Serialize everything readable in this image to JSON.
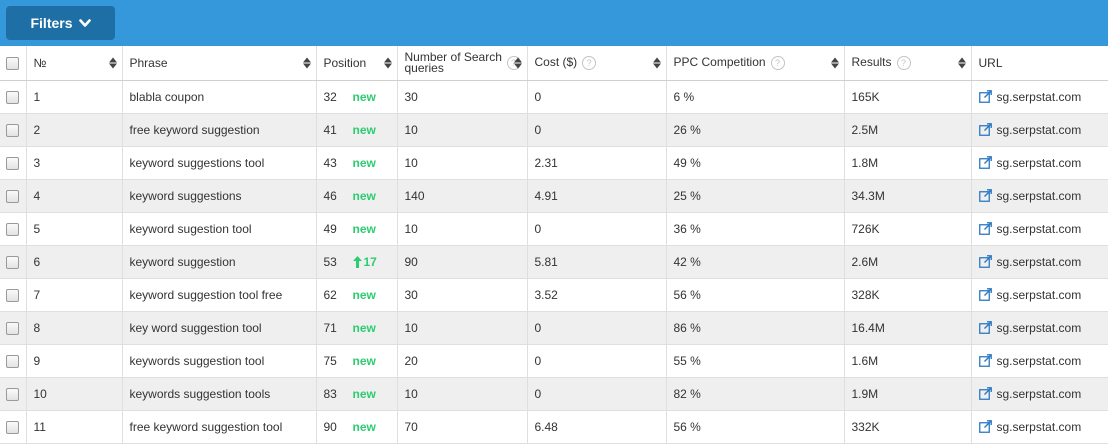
{
  "toolbar": {
    "filters_label": "Filters"
  },
  "headers": {
    "num": "№",
    "phrase": "Phrase",
    "position": "Position",
    "search_queries": "Number of Search queries",
    "cost": "Cost ($)",
    "ppc": "PPC Competition",
    "results": "Results",
    "url": "URL"
  },
  "rows": [
    {
      "n": "1",
      "phrase": "blabla coupon",
      "pos": "32",
      "change": "new",
      "change_type": "new",
      "queries": "30",
      "cost": "0",
      "ppc": "6 %",
      "results": "165K",
      "url": "sg.serpstat.com"
    },
    {
      "n": "2",
      "phrase": "free keyword suggestion",
      "pos": "41",
      "change": "new",
      "change_type": "new",
      "queries": "10",
      "cost": "0",
      "ppc": "26 %",
      "results": "2.5M",
      "url": "sg.serpstat.com"
    },
    {
      "n": "3",
      "phrase": "keyword suggestions tool",
      "pos": "43",
      "change": "new",
      "change_type": "new",
      "queries": "10",
      "cost": "2.31",
      "ppc": "49 %",
      "results": "1.8M",
      "url": "sg.serpstat.com"
    },
    {
      "n": "4",
      "phrase": "keyword suggestions",
      "pos": "46",
      "change": "new",
      "change_type": "new",
      "queries": "140",
      "cost": "4.91",
      "ppc": "25 %",
      "results": "34.3M",
      "url": "sg.serpstat.com"
    },
    {
      "n": "5",
      "phrase": "keyword sugestion tool",
      "pos": "49",
      "change": "new",
      "change_type": "new",
      "queries": "10",
      "cost": "0",
      "ppc": "36 %",
      "results": "726K",
      "url": "sg.serpstat.com"
    },
    {
      "n": "6",
      "phrase": "keyword suggestion",
      "pos": "53",
      "change": "17",
      "change_type": "up",
      "queries": "90",
      "cost": "5.81",
      "ppc": "42 %",
      "results": "2.6M",
      "url": "sg.serpstat.com"
    },
    {
      "n": "7",
      "phrase": "keyword suggestion tool free",
      "pos": "62",
      "change": "new",
      "change_type": "new",
      "queries": "30",
      "cost": "3.52",
      "ppc": "56 %",
      "results": "328K",
      "url": "sg.serpstat.com"
    },
    {
      "n": "8",
      "phrase": "key word suggestion tool",
      "pos": "71",
      "change": "new",
      "change_type": "new",
      "queries": "10",
      "cost": "0",
      "ppc": "86 %",
      "results": "16.4M",
      "url": "sg.serpstat.com"
    },
    {
      "n": "9",
      "phrase": "keywords suggestion tool",
      "pos": "75",
      "change": "new",
      "change_type": "new",
      "queries": "20",
      "cost": "0",
      "ppc": "55 %",
      "results": "1.6M",
      "url": "sg.serpstat.com"
    },
    {
      "n": "10",
      "phrase": "keywords suggestion tools",
      "pos": "83",
      "change": "new",
      "change_type": "new",
      "queries": "10",
      "cost": "0",
      "ppc": "82 %",
      "results": "1.9M",
      "url": "sg.serpstat.com"
    },
    {
      "n": "11",
      "phrase": "free keyword suggestion tool",
      "pos": "90",
      "change": "new",
      "change_type": "new",
      "queries": "70",
      "cost": "6.48",
      "ppc": "56 %",
      "results": "332K",
      "url": "sg.serpstat.com"
    }
  ],
  "colors": {
    "topbar": "#3498db",
    "button": "#1d6fa5",
    "positive": "#2ecc71",
    "row_alt": "#efefef"
  },
  "icons": {
    "filters_chevron": "chevron-down-icon",
    "help": "question-circle-icon",
    "link": "external-link-icon",
    "trend": "arrow-up-icon"
  }
}
